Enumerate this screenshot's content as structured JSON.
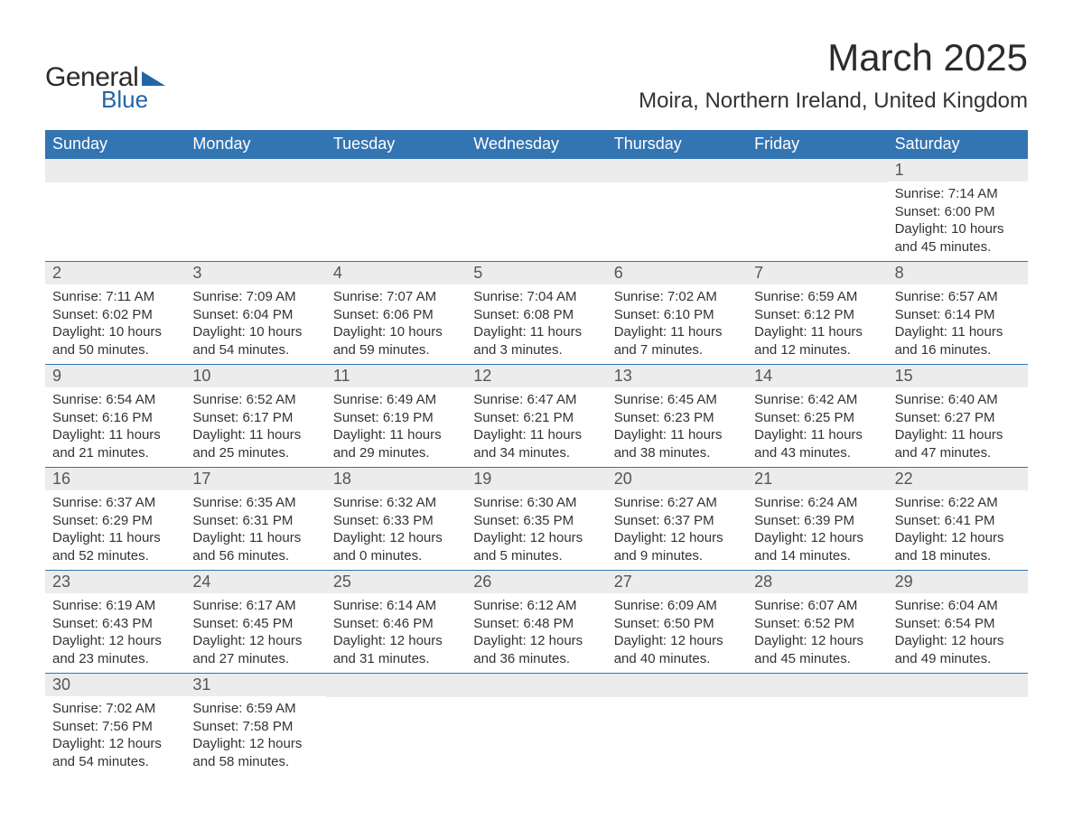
{
  "logo": {
    "text1": "General",
    "text2": "Blue",
    "triangle_color": "#2166a8"
  },
  "title": "March 2025",
  "location": "Moira, Northern Ireland, United Kingdom",
  "colors": {
    "header_bg": "#3374b2",
    "header_fg": "#ffffff",
    "daynum_bg": "#ececec",
    "text": "#333333",
    "row_border": "#3374b2"
  },
  "weekdays": [
    "Sunday",
    "Monday",
    "Tuesday",
    "Wednesday",
    "Thursday",
    "Friday",
    "Saturday"
  ],
  "labels": {
    "sunrise": "Sunrise:",
    "sunset": "Sunset:",
    "daylight": "Daylight:"
  },
  "weeks": [
    [
      null,
      null,
      null,
      null,
      null,
      null,
      {
        "n": "1",
        "sr": "7:14 AM",
        "ss": "6:00 PM",
        "dl": "10 hours and 45 minutes."
      }
    ],
    [
      {
        "n": "2",
        "sr": "7:11 AM",
        "ss": "6:02 PM",
        "dl": "10 hours and 50 minutes."
      },
      {
        "n": "3",
        "sr": "7:09 AM",
        "ss": "6:04 PM",
        "dl": "10 hours and 54 minutes."
      },
      {
        "n": "4",
        "sr": "7:07 AM",
        "ss": "6:06 PM",
        "dl": "10 hours and 59 minutes."
      },
      {
        "n": "5",
        "sr": "7:04 AM",
        "ss": "6:08 PM",
        "dl": "11 hours and 3 minutes."
      },
      {
        "n": "6",
        "sr": "7:02 AM",
        "ss": "6:10 PM",
        "dl": "11 hours and 7 minutes."
      },
      {
        "n": "7",
        "sr": "6:59 AM",
        "ss": "6:12 PM",
        "dl": "11 hours and 12 minutes."
      },
      {
        "n": "8",
        "sr": "6:57 AM",
        "ss": "6:14 PM",
        "dl": "11 hours and 16 minutes."
      }
    ],
    [
      {
        "n": "9",
        "sr": "6:54 AM",
        "ss": "6:16 PM",
        "dl": "11 hours and 21 minutes."
      },
      {
        "n": "10",
        "sr": "6:52 AM",
        "ss": "6:17 PM",
        "dl": "11 hours and 25 minutes."
      },
      {
        "n": "11",
        "sr": "6:49 AM",
        "ss": "6:19 PM",
        "dl": "11 hours and 29 minutes."
      },
      {
        "n": "12",
        "sr": "6:47 AM",
        "ss": "6:21 PM",
        "dl": "11 hours and 34 minutes."
      },
      {
        "n": "13",
        "sr": "6:45 AM",
        "ss": "6:23 PM",
        "dl": "11 hours and 38 minutes."
      },
      {
        "n": "14",
        "sr": "6:42 AM",
        "ss": "6:25 PM",
        "dl": "11 hours and 43 minutes."
      },
      {
        "n": "15",
        "sr": "6:40 AM",
        "ss": "6:27 PM",
        "dl": "11 hours and 47 minutes."
      }
    ],
    [
      {
        "n": "16",
        "sr": "6:37 AM",
        "ss": "6:29 PM",
        "dl": "11 hours and 52 minutes."
      },
      {
        "n": "17",
        "sr": "6:35 AM",
        "ss": "6:31 PM",
        "dl": "11 hours and 56 minutes."
      },
      {
        "n": "18",
        "sr": "6:32 AM",
        "ss": "6:33 PM",
        "dl": "12 hours and 0 minutes."
      },
      {
        "n": "19",
        "sr": "6:30 AM",
        "ss": "6:35 PM",
        "dl": "12 hours and 5 minutes."
      },
      {
        "n": "20",
        "sr": "6:27 AM",
        "ss": "6:37 PM",
        "dl": "12 hours and 9 minutes."
      },
      {
        "n": "21",
        "sr": "6:24 AM",
        "ss": "6:39 PM",
        "dl": "12 hours and 14 minutes."
      },
      {
        "n": "22",
        "sr": "6:22 AM",
        "ss": "6:41 PM",
        "dl": "12 hours and 18 minutes."
      }
    ],
    [
      {
        "n": "23",
        "sr": "6:19 AM",
        "ss": "6:43 PM",
        "dl": "12 hours and 23 minutes."
      },
      {
        "n": "24",
        "sr": "6:17 AM",
        "ss": "6:45 PM",
        "dl": "12 hours and 27 minutes."
      },
      {
        "n": "25",
        "sr": "6:14 AM",
        "ss": "6:46 PM",
        "dl": "12 hours and 31 minutes."
      },
      {
        "n": "26",
        "sr": "6:12 AM",
        "ss": "6:48 PM",
        "dl": "12 hours and 36 minutes."
      },
      {
        "n": "27",
        "sr": "6:09 AM",
        "ss": "6:50 PM",
        "dl": "12 hours and 40 minutes."
      },
      {
        "n": "28",
        "sr": "6:07 AM",
        "ss": "6:52 PM",
        "dl": "12 hours and 45 minutes."
      },
      {
        "n": "29",
        "sr": "6:04 AM",
        "ss": "6:54 PM",
        "dl": "12 hours and 49 minutes."
      }
    ],
    [
      {
        "n": "30",
        "sr": "7:02 AM",
        "ss": "7:56 PM",
        "dl": "12 hours and 54 minutes."
      },
      {
        "n": "31",
        "sr": "6:59 AM",
        "ss": "7:58 PM",
        "dl": "12 hours and 58 minutes."
      },
      null,
      null,
      null,
      null,
      null
    ]
  ]
}
